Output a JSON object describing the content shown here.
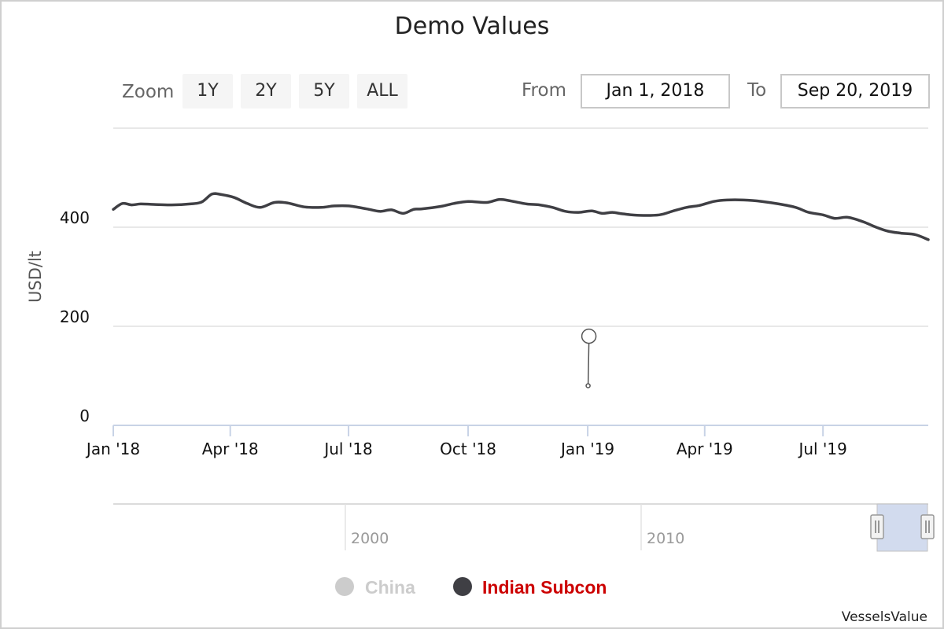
{
  "chart_data": {
    "type": "line",
    "title": "Demo Values",
    "ylabel": "USD/lt",
    "ylim": [
      0,
      600
    ],
    "yticks": [
      "0",
      "200",
      "400"
    ],
    "xlim": [
      "2018-01-01",
      "2019-09-20"
    ],
    "xticks": [
      {
        "date": "2018-01-01",
        "label": "Jan '18"
      },
      {
        "date": "2018-04-01",
        "label": "Apr '18"
      },
      {
        "date": "2018-07-01",
        "label": "Jul '18"
      },
      {
        "date": "2018-10-01",
        "label": "Oct '18"
      },
      {
        "date": "2019-01-01",
        "label": "Jan '19"
      },
      {
        "date": "2019-04-01",
        "label": "Apr '19"
      },
      {
        "date": "2019-07-01",
        "label": "Jul '19"
      }
    ],
    "grid": true,
    "legend_position": "bottom",
    "series": [
      {
        "name": "China",
        "visible": false,
        "color": "#cccccc",
        "x": [],
        "y": []
      },
      {
        "name": "Indian Subcon",
        "visible": true,
        "color": "#3f3f44",
        "x": [
          "2018-01-01",
          "2018-01-08",
          "2018-01-15",
          "2018-01-22",
          "2018-02-01",
          "2018-02-15",
          "2018-03-01",
          "2018-03-10",
          "2018-03-18",
          "2018-03-25",
          "2018-04-04",
          "2018-04-14",
          "2018-04-24",
          "2018-05-05",
          "2018-05-15",
          "2018-05-28",
          "2018-06-10",
          "2018-06-20",
          "2018-07-01",
          "2018-07-15",
          "2018-07-25",
          "2018-08-03",
          "2018-08-12",
          "2018-08-20",
          "2018-08-26",
          "2018-09-10",
          "2018-09-20",
          "2018-10-01",
          "2018-10-15",
          "2018-10-25",
          "2018-11-03",
          "2018-11-15",
          "2018-11-25",
          "2018-12-05",
          "2018-12-15",
          "2018-12-25",
          "2019-01-04",
          "2019-01-12",
          "2019-01-20",
          "2019-01-28",
          "2019-02-10",
          "2019-02-25",
          "2019-03-08",
          "2019-03-18",
          "2019-03-28",
          "2019-04-08",
          "2019-04-18",
          "2019-05-01",
          "2019-05-15",
          "2019-05-28",
          "2019-06-10",
          "2019-06-20",
          "2019-07-01",
          "2019-07-10",
          "2019-07-20",
          "2019-08-01",
          "2019-08-10",
          "2019-08-20",
          "2019-08-30",
          "2019-09-10",
          "2019-09-20"
        ],
        "y": [
          436,
          448,
          445,
          447,
          446,
          445,
          447,
          451,
          467,
          466,
          460,
          448,
          440,
          450,
          449,
          441,
          440,
          443,
          443,
          437,
          432,
          435,
          428,
          436,
          437,
          442,
          448,
          452,
          450,
          456,
          453,
          447,
          445,
          440,
          432,
          430,
          433,
          428,
          430,
          427,
          424,
          425,
          433,
          440,
          444,
          452,
          455,
          455,
          452,
          447,
          440,
          430,
          425,
          418,
          420,
          411,
          401,
          392,
          388,
          385,
          375
        ]
      }
    ],
    "annotation": {
      "date": "2019-01-01",
      "top": 180,
      "bottom": 80
    }
  },
  "zoom": {
    "label": "Zoom",
    "buttons": [
      "1Y",
      "2Y",
      "5Y",
      "ALL"
    ]
  },
  "range": {
    "from_label": "From",
    "from_value": "Jan 1, 2018",
    "to_label": "To",
    "to_value": "Sep 20, 2019"
  },
  "navigator": {
    "labels": [
      "2000",
      "2010"
    ],
    "selected_range": [
      "2018-01-01",
      "2019-09-20"
    ]
  },
  "credits": "VesselsValue"
}
